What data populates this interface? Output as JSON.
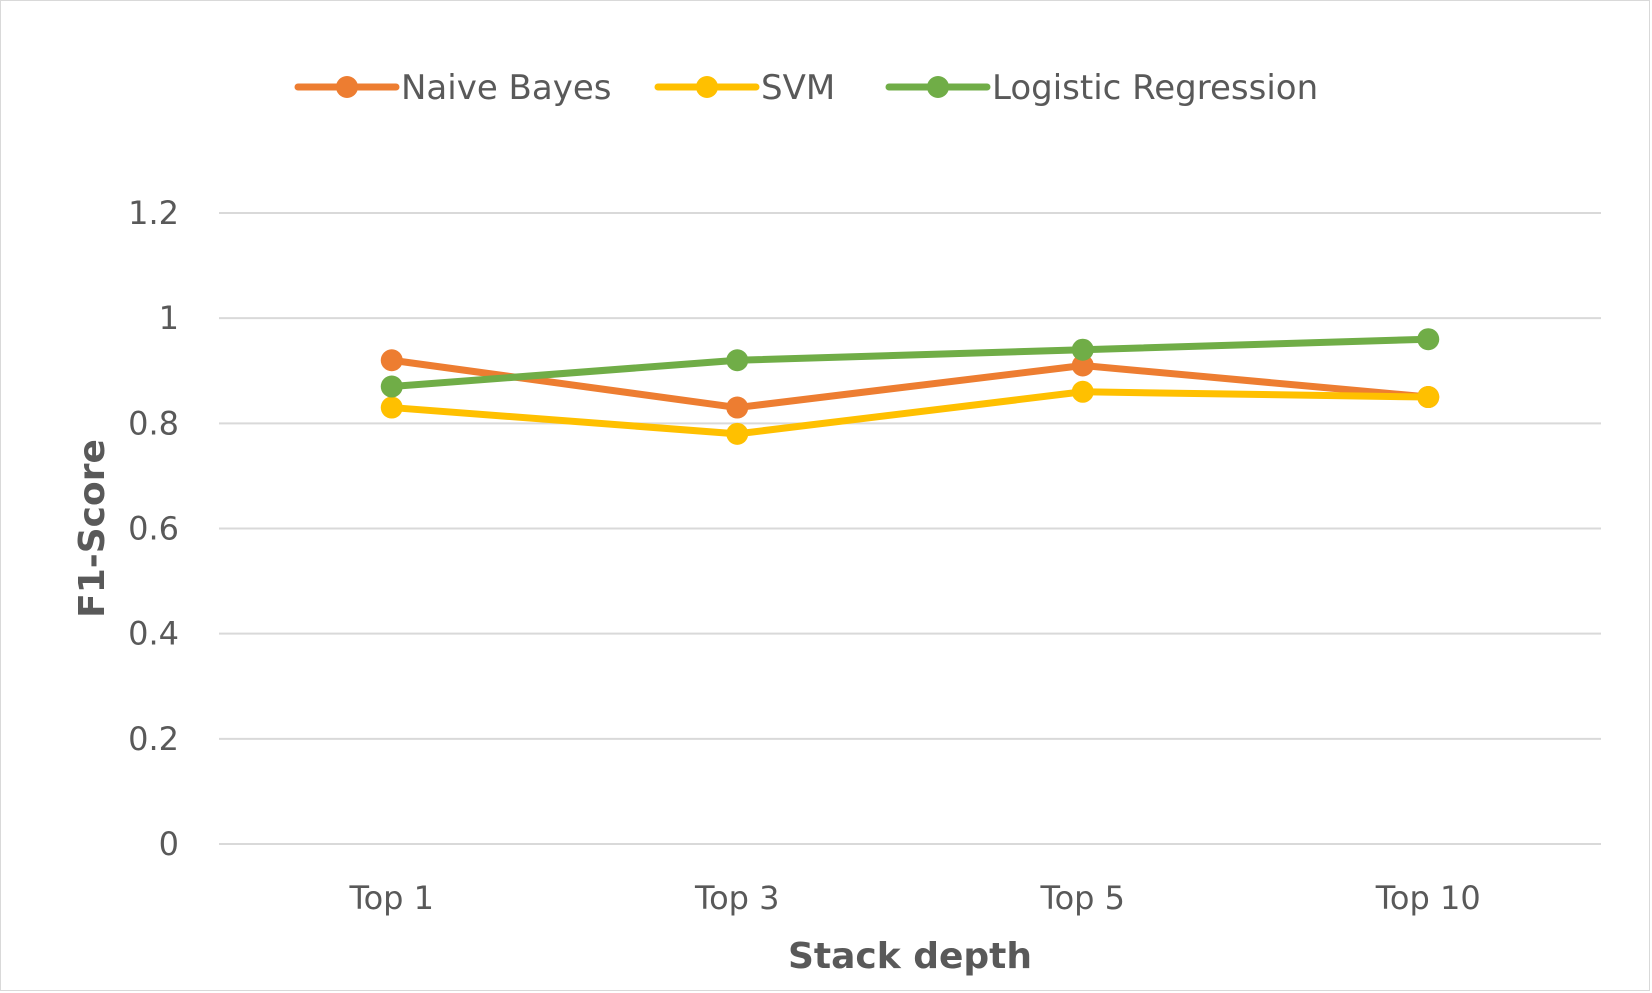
{
  "chart_data": {
    "type": "line",
    "categories": [
      "Top 1",
      "Top 3",
      "Top 5",
      "Top 10"
    ],
    "series": [
      {
        "name": "Naive Bayes",
        "color": "#ED7D31",
        "values": [
          0.92,
          0.83,
          0.91,
          0.85
        ]
      },
      {
        "name": "SVM",
        "color": "#FFC000",
        "values": [
          0.83,
          0.78,
          0.86,
          0.85
        ]
      },
      {
        "name": "Logistic Regression",
        "color": "#70AD47",
        "values": [
          0.87,
          0.92,
          0.94,
          0.96
        ]
      }
    ],
    "xlabel": "Stack depth",
    "ylabel": "F1-Score",
    "ylim": [
      0,
      1.2
    ],
    "yticks": [
      "0",
      "0.2",
      "0.4",
      "0.6",
      "0.8",
      "1",
      "1.2"
    ],
    "grid": true,
    "legend_position": "top"
  }
}
